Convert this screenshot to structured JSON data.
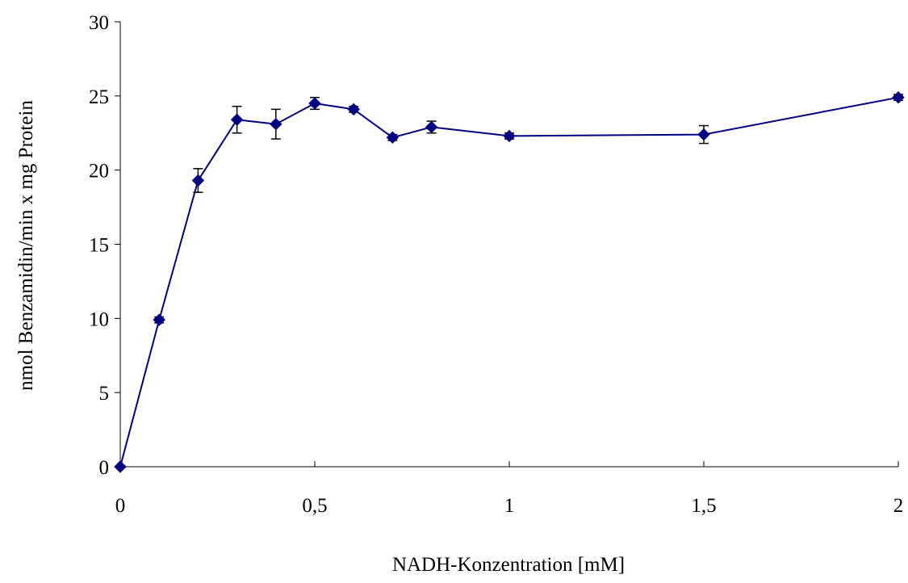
{
  "chart_data": {
    "type": "line",
    "title": "",
    "xlabel": "NADH-Konzentration [mM]",
    "ylabel": "nmol Benzamidin/min x mg Protein",
    "xlim": [
      0,
      2
    ],
    "ylim": [
      0,
      30
    ],
    "x_ticks": [
      0,
      0.5,
      1,
      1.5,
      2
    ],
    "x_tick_labels": [
      "0",
      "0,5",
      "1",
      "1,5",
      "2"
    ],
    "y_ticks": [
      0,
      5,
      10,
      15,
      20,
      25,
      30
    ],
    "y_tick_labels": [
      "0",
      "5",
      "10",
      "15",
      "20",
      "25",
      "30"
    ],
    "grid": false,
    "legend": "none",
    "series": [
      {
        "color": "#000080",
        "marker": "diamond",
        "points": [
          {
            "x": 0,
            "y": 0,
            "err": 0
          },
          {
            "x": 0.1,
            "y": 9.9,
            "err": 0.2
          },
          {
            "x": 0.2,
            "y": 19.3,
            "err": 0.8
          },
          {
            "x": 0.3,
            "y": 23.4,
            "err": 0.9
          },
          {
            "x": 0.4,
            "y": 23.1,
            "err": 1.0
          },
          {
            "x": 0.5,
            "y": 24.5,
            "err": 0.4
          },
          {
            "x": 0.6,
            "y": 24.1,
            "err": 0.2
          },
          {
            "x": 0.7,
            "y": 22.2,
            "err": 0.2
          },
          {
            "x": 0.8,
            "y": 22.9,
            "err": 0.4
          },
          {
            "x": 1.0,
            "y": 22.3,
            "err": 0.2
          },
          {
            "x": 1.5,
            "y": 22.4,
            "err": 0.6
          },
          {
            "x": 2.0,
            "y": 24.9,
            "err": 0.2
          }
        ]
      }
    ]
  }
}
